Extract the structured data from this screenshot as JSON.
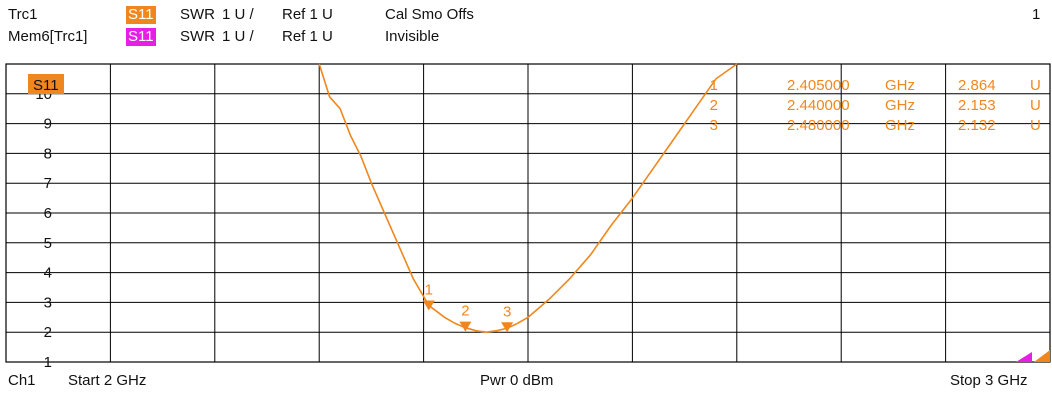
{
  "header": {
    "row1": {
      "trace": "Trc1",
      "badge": "S11",
      "format": "SWR",
      "scale": "1 U /",
      "ref": "Ref 1 U",
      "status": "Cal Smo Offs",
      "window_num": "1"
    },
    "row2": {
      "trace": "Mem6[Trc1]",
      "badge": "S11",
      "format": "SWR",
      "scale": "1 U /",
      "ref": "Ref 1 U",
      "status": "Invisible"
    }
  },
  "footer": {
    "channel": "Ch1",
    "start": "Start  2 GHz",
    "power": "Pwr  0 dBm",
    "stop": "Stop  3 GHz"
  },
  "colors": {
    "trace": "#f0871e",
    "memory": "#e61ee6",
    "grid": "#000000"
  },
  "chart_data": {
    "type": "line",
    "series_label": "S11",
    "y_ticks": [
      "10",
      "9",
      "8",
      "7",
      "6",
      "5",
      "4",
      "3",
      "2",
      "1"
    ],
    "xlim_ghz": [
      2.0,
      3.0
    ],
    "ylim": [
      1,
      11
    ],
    "series": [
      {
        "name": "S11",
        "x": [
          2.3,
          2.31,
          2.32,
          2.33,
          2.34,
          2.35,
          2.36,
          2.37,
          2.38,
          2.39,
          2.405,
          2.42,
          2.43,
          2.44,
          2.45,
          2.46,
          2.47,
          2.48,
          2.49,
          2.5,
          2.52,
          2.54,
          2.56,
          2.58,
          2.6,
          2.62,
          2.64,
          2.66,
          2.68,
          2.7
        ],
        "y": [
          11.0,
          9.9,
          9.5,
          8.6,
          7.9,
          7.0,
          6.2,
          5.4,
          4.6,
          3.8,
          2.9,
          2.5,
          2.3,
          2.15,
          2.05,
          2.0,
          2.05,
          2.13,
          2.3,
          2.5,
          3.1,
          3.8,
          4.6,
          5.6,
          6.5,
          7.5,
          8.5,
          9.5,
          10.5,
          11.0
        ]
      }
    ],
    "markers": [
      {
        "id": "1",
        "freq": "2.405000",
        "unit": "GHz",
        "value": "2.864",
        "vunit": "U",
        "x": 2.405,
        "y": 2.864
      },
      {
        "id": "2",
        "freq": "2.440000",
        "unit": "GHz",
        "value": "2.153",
        "vunit": "U",
        "x": 2.44,
        "y": 2.153
      },
      {
        "id": "3",
        "freq": "2.480000",
        "unit": "GHz",
        "value": "2.132",
        "vunit": "U",
        "x": 2.48,
        "y": 2.132
      }
    ]
  }
}
